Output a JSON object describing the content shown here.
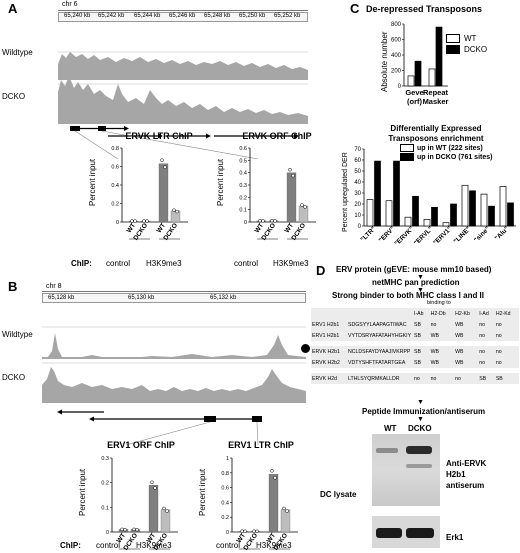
{
  "panels": {
    "A": {
      "letter": "A",
      "chrom": "chr 6",
      "ticks": [
        "65,240 kb",
        "65,242 kb",
        "65,244 kb",
        "65,246 kb",
        "65,248 kb",
        "65,250 kb",
        "65,252 kb"
      ],
      "tracks": [
        "Wildtype",
        "DCKO"
      ],
      "charts": [
        {
          "title": "ERVK LTR ChIP"
        },
        {
          "title": "ERVK ORF ChIP"
        }
      ]
    },
    "B": {
      "letter": "B",
      "chrom": "chr 8",
      "ticks": [
        "65,128 kb",
        "65,130 kb",
        "65,132 kb"
      ],
      "tracks": [
        "Wildtype",
        "DCKO"
      ],
      "charts": [
        {
          "title": "ERV1 ORF ChIP"
        },
        {
          "title": "ERV1 LTR ChIP"
        }
      ]
    },
    "C": {
      "letter": "C",
      "top_title": "De-repressed Transposons",
      "bottom_title_1": "Differentially Expressed",
      "bottom_title_2": "Transposons enrichment"
    },
    "D": {
      "letter": "D",
      "line1": "ERV protein (gEVE: mouse mm10 based)",
      "line2": "netMHC pan prediction",
      "line3": "Strong  binder to both MHC class I and II",
      "binding_to": "binding to",
      "columns": [
        "I-Ab",
        "H2-Db",
        "H2-Kb",
        "I-Ad",
        "H2-Kd"
      ],
      "rows": [
        {
          "name": "ERV1 H2b1",
          "seq": "SDGSYYLAAPAGTIWAC",
          "vals": [
            "SB",
            "no",
            "WB",
            "no",
            "no"
          ]
        },
        {
          "name": "ERV1 H2b1",
          "seq": "VYTDSRYAFATAHYHGKIY",
          "vals": [
            "SB",
            "WB",
            "WB",
            "no",
            "no"
          ]
        },
        {
          "name": "ERVK H2b1",
          "seq": "NCLDSFAYDYAAJIVKRPP",
          "vals": [
            "SB",
            "WB",
            "WB",
            "no",
            "no"
          ]
        },
        {
          "name": "ERVK H2b2",
          "seq": "VDTYSHFTFATARTGEA",
          "vals": [
            "SB",
            "WB",
            "WB",
            "no",
            "no"
          ]
        },
        {
          "name": "ERVK H2d",
          "seq": "LTHLSYQRMKALLDR",
          "vals": [
            "no",
            "no",
            "no",
            "SB",
            "SB"
          ]
        }
      ],
      "line4": "Peptide Immunization/antiserum",
      "lane_wt": "WT",
      "lane_dcko": "DCKO",
      "ab1": "Anti-ERVK",
      "ab2": "H2b1",
      "ab3": "antiserum",
      "erk": "Erk1",
      "lysate": "DC lysate"
    }
  },
  "common": {
    "percent_input": "Percent input",
    "wt": "WT",
    "dcko": "DCKO",
    "chip": "ChIP:",
    "control": "control",
    "h3k9me3": "H3K9me3"
  },
  "chart_data": [
    {
      "type": "bar",
      "title": "ERVK LTR ChIP",
      "ylabel": "Percent input",
      "categories": [
        "control WT",
        "control DCKO",
        "H3K9me3 WT",
        "H3K9me3 DCKO"
      ],
      "values": [
        0.01,
        0.01,
        0.63,
        0.12
      ],
      "ylim": [
        0,
        0.8
      ],
      "yticks": [
        "0",
        "0.2",
        "0.4",
        "0.6",
        "0.8"
      ]
    },
    {
      "type": "bar",
      "title": "ERVK ORF ChIP",
      "ylabel": "Percent input",
      "categories": [
        "control WT",
        "control DCKO",
        "H3K9me3 WT",
        "H3K9me3 DCKO"
      ],
      "values": [
        0.01,
        0.01,
        0.4,
        0.13
      ],
      "ylim": [
        0,
        0.6
      ],
      "yticks": [
        "0",
        "0.1",
        "0.2",
        "0.3",
        "0.4",
        "0.5",
        "0.6"
      ]
    },
    {
      "type": "bar",
      "title": "ERV1 ORF ChIP",
      "ylabel": "Percent input",
      "categories": [
        "control WT",
        "control DCKO",
        "H3K9me3 WT",
        "H3K9me3 DCKO"
      ],
      "values": [
        0.01,
        0.01,
        0.19,
        0.09
      ],
      "ylim": [
        0,
        0.3
      ],
      "yticks": [
        "0",
        "0.1",
        "0.2",
        "0.3"
      ]
    },
    {
      "type": "bar",
      "title": "ERV1 LTR ChIP",
      "ylabel": "Percent input",
      "categories": [
        "control WT",
        "control DCKO",
        "H3K9me3 WT",
        "H3K9me3 DCKO"
      ],
      "values": [
        0.01,
        0.01,
        0.78,
        0.3
      ],
      "ylim": [
        0,
        1
      ],
      "yticks": [
        "0",
        "0.2",
        "0.4",
        "0.6",
        "0.8",
        "1"
      ]
    },
    {
      "type": "bar",
      "title": "De-repressed Transposons",
      "ylabel": "Absolute number",
      "categories": [
        "Geve (orf)",
        "Repeat Masker"
      ],
      "series": [
        {
          "name": "WT",
          "values": [
            130,
            220
          ]
        },
        {
          "name": "DCKO",
          "values": [
            320,
            760
          ]
        }
      ],
      "ylim": [
        0,
        800
      ],
      "yticks": [
        "0",
        "200",
        "400",
        "600",
        "800"
      ],
      "legend": "right"
    },
    {
      "type": "bar",
      "title": "Differentially Expressed Transposons enrichment",
      "ylabel": "Percent upregulated DER",
      "categories": [
        "\"LTR\"",
        "\"ERV\"",
        "\"ERVK\"",
        "\"ERVL\"",
        "\"ERV1\"",
        "\"LINE\"",
        "\"sine\"",
        "\"Alu\""
      ],
      "series": [
        {
          "name": "up in WT (222 sites)",
          "values": [
            24,
            23,
            8,
            6,
            3,
            37,
            29,
            36
          ]
        },
        {
          "name": "up in DCKO (761 sites)",
          "values": [
            59,
            59,
            27,
            17,
            20,
            32,
            18,
            21
          ]
        }
      ],
      "ylim": [
        0,
        70
      ],
      "yticks": [
        "0",
        "10",
        "20",
        "30",
        "40",
        "50",
        "60",
        "70"
      ],
      "legend": "top-right"
    }
  ]
}
